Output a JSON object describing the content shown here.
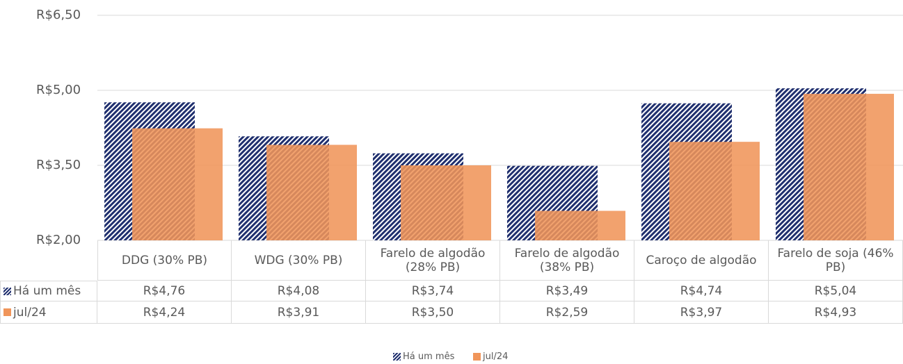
{
  "chart_data": {
    "type": "bar",
    "categories": [
      "DDG (30% PB)",
      "WDG (30% PB)",
      "Farelo de algodão (28% PB)",
      "Farelo de algodão (38% PB)",
      "Caroço de algodão",
      "Farelo de soja (46% PB)"
    ],
    "series": [
      {
        "name": "Há um mês",
        "color": "#1f2f6e",
        "pattern": "hatch",
        "values": [
          4.76,
          4.08,
          3.74,
          3.49,
          4.74,
          5.04
        ],
        "value_labels": [
          "R$4,76",
          "R$4,08",
          "R$3,74",
          "R$3,49",
          "R$4,74",
          "R$5,04"
        ]
      },
      {
        "name": "jul/24",
        "color": "#f0955a",
        "values": [
          4.24,
          3.91,
          3.5,
          2.59,
          3.97,
          4.93
        ],
        "value_labels": [
          "R$4,24",
          "R$3,91",
          "R$3,50",
          "R$2,59",
          "R$3,97",
          "R$4,93"
        ]
      }
    ],
    "ylim": [
      2,
      6.5
    ],
    "yticks": [
      {
        "value": 2,
        "label": "R$2,00"
      },
      {
        "value": 3.5,
        "label": "R$3,50"
      },
      {
        "value": 5,
        "label": "R$5,00"
      },
      {
        "value": 6.5,
        "label": "R$6,50"
      }
    ],
    "grid": true,
    "legend": "bottom",
    "data_table": true
  }
}
